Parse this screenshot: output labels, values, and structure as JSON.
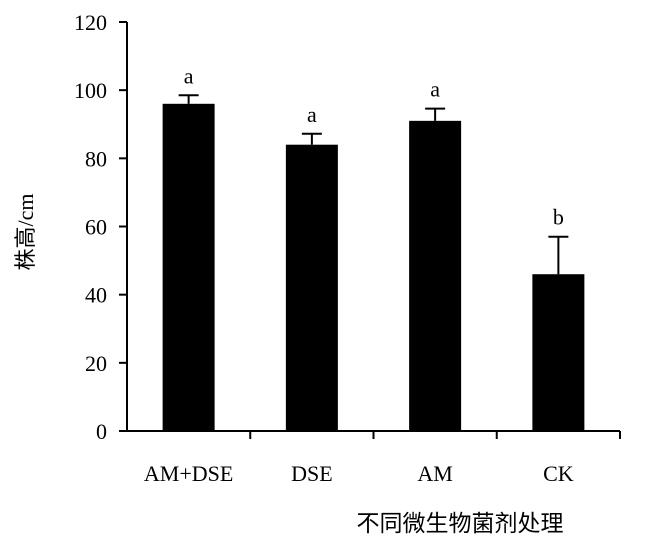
{
  "chart_data": {
    "type": "bar",
    "title": "",
    "xlabel": "不同微生物菌剂处理",
    "ylabel": "株高/cm",
    "categories": [
      "AM+DSE",
      "DSE",
      "AM",
      "CK"
    ],
    "values": [
      96,
      84,
      91,
      46
    ],
    "errors": [
      2.5,
      3.2,
      3.6,
      11
    ],
    "significance_labels": [
      "a",
      "a",
      "a",
      "b"
    ],
    "ylim": [
      0,
      120
    ],
    "yticks": [
      0,
      20,
      40,
      60,
      80,
      100,
      120
    ],
    "ytick_labels": [
      "0",
      "20",
      "40",
      "60",
      "80",
      "100",
      "120"
    ],
    "grid": false,
    "legend": "none",
    "bar_color": "#000000"
  }
}
